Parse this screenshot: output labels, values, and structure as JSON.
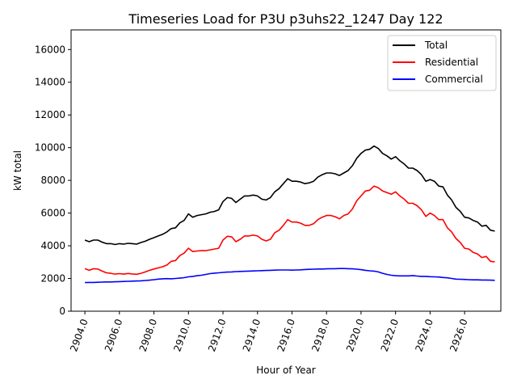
{
  "chart_data": {
    "type": "line",
    "title": "Timeseries Load for P3U p3uhs22_1247  Day 122",
    "xlabel": "Hour of Year",
    "ylabel": "kW total",
    "xlim": [
      2903.2,
      2928.1
    ],
    "ylim": [
      0,
      17200
    ],
    "x_ticks": [
      2904,
      2906,
      2908,
      2910,
      2912,
      2914,
      2916,
      2918,
      2920,
      2922,
      2924,
      2926
    ],
    "x_tick_labels": [
      "2904.0",
      "2906.0",
      "2908.0",
      "2910.0",
      "2912.0",
      "2914.0",
      "2916.0",
      "2918.0",
      "2920.0",
      "2922.0",
      "2924.0",
      "2926.0"
    ],
    "y_ticks": [
      0,
      2000,
      4000,
      6000,
      8000,
      10000,
      12000,
      14000,
      16000
    ],
    "y_tick_labels": [
      "0",
      "2000",
      "4000",
      "6000",
      "8000",
      "10000",
      "12000",
      "14000",
      "16000"
    ],
    "legend_position": "top-right",
    "x": [
      2904.0,
      2904.25,
      2904.5,
      2904.75,
      2905.0,
      2905.25,
      2905.5,
      2905.75,
      2906.0,
      2906.25,
      2906.5,
      2906.75,
      2907.0,
      2907.25,
      2907.5,
      2907.75,
      2908.0,
      2908.25,
      2908.5,
      2908.75,
      2909.0,
      2909.25,
      2909.5,
      2909.75,
      2910.0,
      2910.25,
      2910.5,
      2910.75,
      2911.0,
      2911.25,
      2911.5,
      2911.75,
      2912.0,
      2912.25,
      2912.5,
      2912.75,
      2913.0,
      2913.25,
      2913.5,
      2913.75,
      2914.0,
      2914.25,
      2914.5,
      2914.75,
      2915.0,
      2915.25,
      2915.5,
      2915.75,
      2916.0,
      2916.25,
      2916.5,
      2916.75,
      2917.0,
      2917.25,
      2917.5,
      2917.75,
      2918.0,
      2918.25,
      2918.5,
      2918.75,
      2919.0,
      2919.25,
      2919.5,
      2919.75,
      2920.0,
      2920.25,
      2920.5,
      2920.75,
      2921.0,
      2921.25,
      2921.5,
      2921.75,
      2922.0,
      2922.25,
      2922.5,
      2922.75,
      2923.0,
      2923.25,
      2923.5,
      2923.75,
      2924.0,
      2924.25,
      2924.5,
      2924.75,
      2925.0,
      2925.25,
      2925.5,
      2925.75,
      2926.0,
      2926.25,
      2926.5,
      2926.75,
      2927.0,
      2927.25,
      2927.5,
      2927.75
    ],
    "series": [
      {
        "name": "Total",
        "color": "#000000",
        "values": [
          4350,
          4250,
          4350,
          4350,
          4220,
          4130,
          4130,
          4080,
          4130,
          4100,
          4150,
          4130,
          4100,
          4200,
          4280,
          4400,
          4500,
          4600,
          4700,
          4850,
          5050,
          5100,
          5400,
          5550,
          5950,
          5750,
          5850,
          5900,
          5950,
          6050,
          6100,
          6200,
          6700,
          6950,
          6900,
          6650,
          6850,
          7050,
          7050,
          7100,
          7050,
          6850,
          6800,
          6950,
          7300,
          7500,
          7800,
          8100,
          7950,
          7950,
          7900,
          7800,
          7850,
          7950,
          8200,
          8350,
          8450,
          8450,
          8400,
          8300,
          8450,
          8600,
          8900,
          9350,
          9650,
          9850,
          9900,
          10100,
          9950,
          9650,
          9500,
          9300,
          9450,
          9200,
          9000,
          8750,
          8750,
          8600,
          8350,
          7950,
          8050,
          7950,
          7650,
          7600,
          7100,
          6800,
          6350,
          6100,
          5750,
          5700,
          5550,
          5450,
          5200,
          5250,
          4950,
          4900
        ]
      },
      {
        "name": "Residential",
        "color": "#ff0000",
        "values": [
          2600,
          2500,
          2600,
          2580,
          2450,
          2350,
          2320,
          2270,
          2300,
          2270,
          2310,
          2280,
          2260,
          2320,
          2400,
          2500,
          2580,
          2650,
          2720,
          2820,
          3050,
          3100,
          3400,
          3550,
          3850,
          3650,
          3680,
          3700,
          3700,
          3750,
          3800,
          3850,
          4350,
          4580,
          4550,
          4250,
          4400,
          4600,
          4600,
          4650,
          4600,
          4400,
          4300,
          4400,
          4800,
          4950,
          5250,
          5600,
          5450,
          5450,
          5380,
          5250,
          5250,
          5350,
          5600,
          5750,
          5850,
          5850,
          5780,
          5650,
          5850,
          5950,
          6250,
          6750,
          7050,
          7350,
          7400,
          7650,
          7550,
          7350,
          7250,
          7150,
          7300,
          7050,
          6850,
          6600,
          6600,
          6450,
          6200,
          5800,
          6000,
          5850,
          5600,
          5600,
          5100,
          4850,
          4450,
          4200,
          3850,
          3800,
          3600,
          3500,
          3280,
          3350,
          3050,
          3020
        ]
      },
      {
        "name": "Commercial",
        "color": "#0000ff",
        "values": [
          1750,
          1760,
          1760,
          1770,
          1780,
          1790,
          1790,
          1800,
          1810,
          1820,
          1830,
          1840,
          1850,
          1860,
          1880,
          1900,
          1930,
          1960,
          1980,
          1990,
          1980,
          2000,
          2020,
          2050,
          2100,
          2130,
          2170,
          2200,
          2250,
          2300,
          2330,
          2350,
          2370,
          2390,
          2400,
          2420,
          2430,
          2440,
          2450,
          2460,
          2470,
          2480,
          2490,
          2500,
          2510,
          2520,
          2520,
          2520,
          2510,
          2520,
          2530,
          2550,
          2560,
          2570,
          2580,
          2580,
          2590,
          2600,
          2600,
          2610,
          2610,
          2600,
          2590,
          2570,
          2540,
          2500,
          2470,
          2450,
          2400,
          2320,
          2250,
          2200,
          2170,
          2160,
          2160,
          2160,
          2180,
          2150,
          2130,
          2130,
          2110,
          2100,
          2090,
          2060,
          2040,
          2000,
          1960,
          1950,
          1940,
          1930,
          1920,
          1920,
          1910,
          1910,
          1900,
          1890
        ]
      }
    ]
  }
}
